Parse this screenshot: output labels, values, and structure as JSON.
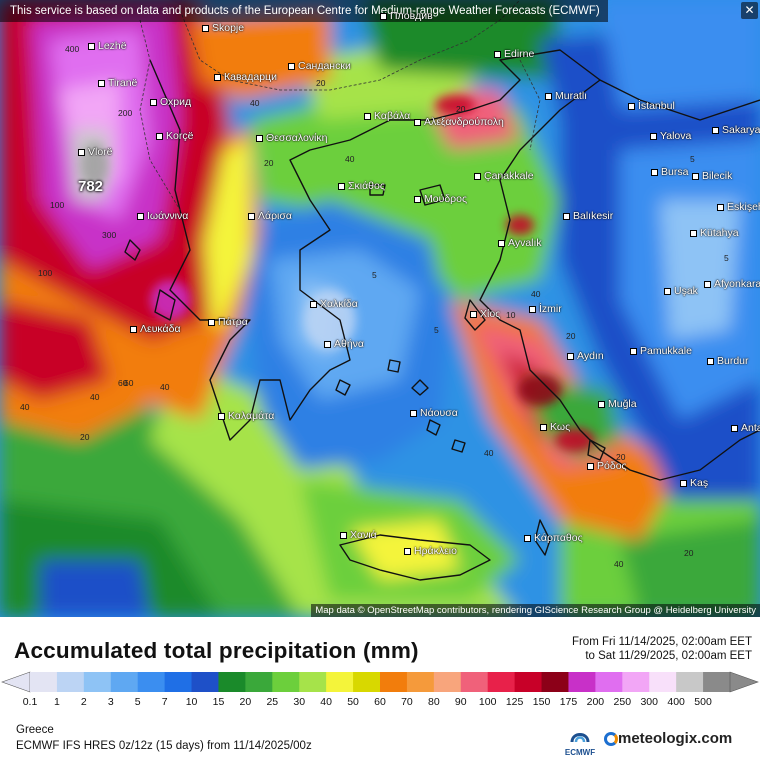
{
  "map": {
    "notice": "This service is based on data and products of the European Centre for Medium-range Weather Forecasts (ECMWF)",
    "attribution": "Map data © OpenStreetMap contributors, rendering GIScience Research Group @ Heidelberg University",
    "max_value": "782",
    "places": [
      {
        "name": "Lezhë"
      },
      {
        "name": "Skopje"
      },
      {
        "name": "Пловдив"
      },
      {
        "name": "Edirne"
      },
      {
        "name": "Tiranë"
      },
      {
        "name": "Кавадарци"
      },
      {
        "name": "Сандански"
      },
      {
        "name": "Muratlı"
      },
      {
        "name": "İstanbul"
      },
      {
        "name": "Охрид"
      },
      {
        "name": "Καβάλα"
      },
      {
        "name": "Αλεξανδρούπολη"
      },
      {
        "name": "Yalova"
      },
      {
        "name": "Sakarya"
      },
      {
        "name": "Korçë"
      },
      {
        "name": "Θεσσαλονίκη"
      },
      {
        "name": "Vlorë"
      },
      {
        "name": "Bursa"
      },
      {
        "name": "Bilecik"
      },
      {
        "name": "Çanakkale"
      },
      {
        "name": "Σκιάθος"
      },
      {
        "name": "Μούδρος"
      },
      {
        "name": "Ιωάννινα"
      },
      {
        "name": "Eskişehir"
      },
      {
        "name": "Λάρισα"
      },
      {
        "name": "Balıkesir"
      },
      {
        "name": "Kütahya"
      },
      {
        "name": "Ayvalık"
      },
      {
        "name": "Afyonkarahisar"
      },
      {
        "name": "Uşak"
      },
      {
        "name": "Χαλκίδα"
      },
      {
        "name": "Χίος"
      },
      {
        "name": "İzmir"
      },
      {
        "name": "Λευκάδα"
      },
      {
        "name": "Πάτρα"
      },
      {
        "name": "Αθήνα"
      },
      {
        "name": "Pamukkale"
      },
      {
        "name": "Aydın"
      },
      {
        "name": "Burdur"
      },
      {
        "name": "Καλαμάτα"
      },
      {
        "name": "Νάουσα"
      },
      {
        "name": "Muğla"
      },
      {
        "name": "Κως"
      },
      {
        "name": "Ρόδος"
      },
      {
        "name": "Antalya"
      },
      {
        "name": "Kaş"
      },
      {
        "name": "Χανιά"
      },
      {
        "name": "Ηράκλειο"
      },
      {
        "name": "Κάρπαθος"
      }
    ],
    "contour_labels": [
      "400",
      "200",
      "100",
      "300",
      "100",
      "60",
      "40",
      "40",
      "20",
      "40",
      "20",
      "5",
      "5",
      "20",
      "40",
      "20",
      "10",
      "40",
      "20",
      "40",
      "20",
      "40",
      "20",
      "5",
      "5",
      "60",
      "40"
    ]
  },
  "title": "Accumulated total precipitation (mm)",
  "period": {
    "from": "From Fri 11/14/2025, 02:00am EET",
    "to": "to Sat 11/29/2025, 02:00am EET"
  },
  "legend": {
    "values": [
      "0.1",
      "1",
      "2",
      "3",
      "5",
      "7",
      "10",
      "15",
      "20",
      "25",
      "30",
      "40",
      "50",
      "60",
      "70",
      "80",
      "90",
      "100",
      "125",
      "150",
      "175",
      "200",
      "250",
      "300",
      "400",
      "500"
    ],
    "colors": [
      "#e3e4f3",
      "#bcd4f4",
      "#8ec3f5",
      "#5fa8f2",
      "#3b8ef0",
      "#1f6fe6",
      "#1e50c8",
      "#1a8a2a",
      "#3aa83a",
      "#6ccf3c",
      "#a6e34a",
      "#f4f43a",
      "#d8d800",
      "#f27d0c",
      "#f59a3b",
      "#f8a57c",
      "#f0617a",
      "#e8214a",
      "#c80028",
      "#8c0018",
      "#c830c8",
      "#e06ef0",
      "#f2a6f6",
      "#f8e0fa",
      "#c8c8c8",
      "#8a8a8a"
    ]
  },
  "footer": {
    "region": "Greece",
    "model": "ECMWF IFS HRES 0z/12z (15 days) from 11/14/2025/00z",
    "ecmwf_label": "ECMWF",
    "brand": "meteologix.com"
  }
}
